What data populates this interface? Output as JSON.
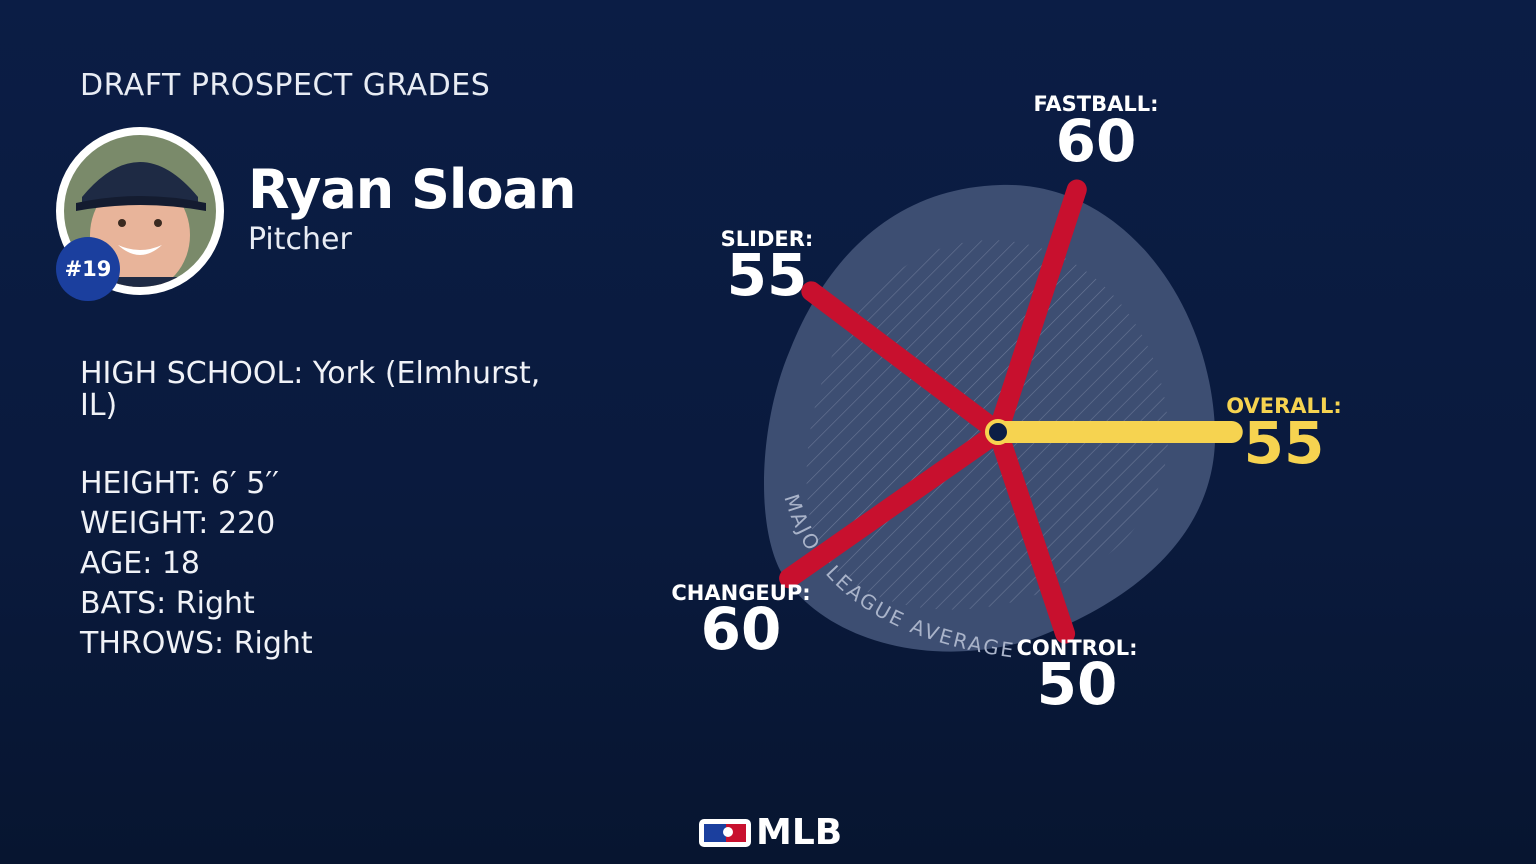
{
  "header": {
    "title": "DRAFT PROSPECT GRADES"
  },
  "player": {
    "name": "Ryan Sloan",
    "position": "Pitcher",
    "rank": "#19"
  },
  "details": [
    "HIGH SCHOOL: York (Elmhurst, IL)",
    "HEIGHT: 6′ 5′′",
    "WEIGHT: 220",
    "AGE: 18",
    "BATS: Right",
    "THROWS: Right"
  ],
  "chart_data": {
    "type": "radial",
    "annotation": "MAJOR LEAGUE AVERAGE",
    "categories": [
      "FASTBALL:",
      "SLIDER:",
      "CHANGEUP:",
      "CONTROL:",
      "OVERALL:"
    ],
    "values": [
      60,
      55,
      60,
      50,
      55
    ],
    "colors": [
      "#c8102e",
      "#c8102e",
      "#c8102e",
      "#c8102e",
      "#f6d350"
    ]
  },
  "footer": {
    "logo": "MLB"
  }
}
